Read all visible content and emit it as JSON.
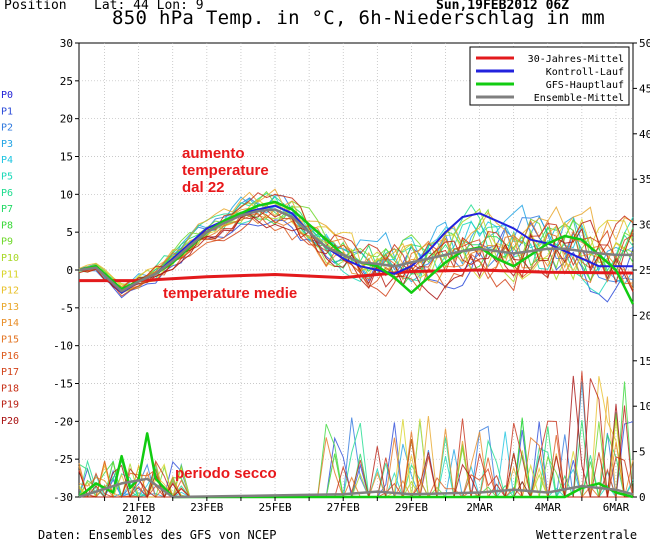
{
  "header": {
    "position_label": "Position",
    "lat_lon": "Lat: 44 Lon: 9",
    "run_time": "Sun,19FEB2012 06Z",
    "title": "850 hPa Temp. in °C, 6h-Niederschlag in mm"
  },
  "footer": {
    "source": "Daten: Ensembles des GFS von NCEP",
    "brand": "Wetterzentrale"
  },
  "colors": {
    "climatology": "#e31a1c",
    "control": "#2222dd",
    "operational": "#11cc11",
    "ensemble_mean": "#7f7f7f"
  },
  "member_labels": [
    "P0",
    "P1",
    "P2",
    "P3",
    "P4",
    "P5",
    "P6",
    "P7",
    "P8",
    "P9",
    "P10",
    "P11",
    "P12",
    "P13",
    "P14",
    "P15",
    "P16",
    "P17",
    "P18",
    "P19",
    "P20"
  ],
  "member_colors": [
    "#1f1fd6",
    "#2a4ad8",
    "#2f78de",
    "#21a3e4",
    "#1cc4e0",
    "#19d8b8",
    "#1ddc8e",
    "#21d964",
    "#3ad83a",
    "#6ed82a",
    "#a8d827",
    "#d8d428",
    "#e8c02a",
    "#e9a72a",
    "#e88d26",
    "#e37422",
    "#dd5b1e",
    "#d2431a",
    "#c72f16",
    "#b81e12",
    "#a81010"
  ],
  "annotations": {
    "rise_line1": "aumento",
    "rise_line2": "temperature",
    "rise_line3": "dal 22",
    "average": "temperature medie",
    "dry": "periodo secco"
  },
  "chart_data": {
    "type": "line",
    "xlabel": "",
    "ylabel": "",
    "x_ticks": [
      "21FEB",
      "23FEB",
      "25FEB",
      "27FEB",
      "29FEB",
      "2MAR",
      "4MAR",
      "6MAR"
    ],
    "x_subtick": "2012",
    "xlim": [
      "2012-02-19T06",
      "2012-03-06T12"
    ],
    "y_left": {
      "unit": "°C",
      "ylim": [
        -30,
        30
      ],
      "ticks": [
        -30,
        -25,
        -20,
        -15,
        -10,
        -5,
        0,
        5,
        10,
        15,
        20,
        25,
        30
      ]
    },
    "y_right": {
      "unit": "mm",
      "ylim": [
        0,
        50
      ],
      "ticks": [
        0,
        5,
        10,
        15,
        20,
        25,
        30,
        35,
        40,
        45,
        50
      ]
    },
    "grid": true,
    "legend_position": "top-right",
    "legend": [
      "30-Jahres-Mittel",
      "Kontroll-Lauf",
      "GFS-Hauptlauf",
      "Ensemble-Mittel"
    ],
    "temperature_series": [
      {
        "name": "30-Jahres-Mittel",
        "style": "climatology",
        "x": [
          "2012-02-19T06",
          "2012-02-21T00",
          "2012-02-23T00",
          "2012-02-25T00",
          "2012-02-27T00",
          "2012-02-29T00",
          "2012-03-02T00",
          "2012-03-04T00",
          "2012-03-06T12"
        ],
        "y": [
          -1.4,
          -1.4,
          -0.9,
          -0.6,
          -1.0,
          -0.2,
          0.0,
          -0.3,
          -0.4
        ]
      },
      {
        "name": "Kontroll-Lauf",
        "style": "control",
        "x": [
          "2012-02-19T06",
          "2012-02-19T18",
          "2012-02-20T12",
          "2012-02-21T00",
          "2012-02-21T12",
          "2012-02-22T00",
          "2012-02-22T12",
          "2012-02-23T00",
          "2012-02-23T12",
          "2012-02-24T00",
          "2012-02-24T12",
          "2012-02-25T00",
          "2012-02-25T12",
          "2012-02-26T00",
          "2012-02-26T12",
          "2012-02-27T00",
          "2012-02-27T12",
          "2012-02-28T00",
          "2012-02-28T12",
          "2012-02-29T00",
          "2012-02-29T12",
          "2012-03-01T00",
          "2012-03-01T12",
          "2012-03-02T00",
          "2012-03-02T12",
          "2012-03-03T00",
          "2012-03-03T12",
          "2012-03-04T00",
          "2012-03-04T12",
          "2012-03-05T00",
          "2012-03-05T12",
          "2012-03-06T00",
          "2012-03-06T12"
        ],
        "y": [
          0,
          0.5,
          -3.0,
          -1.5,
          -0.5,
          1.5,
          3.5,
          5.5,
          6.5,
          7.5,
          8.0,
          8.5,
          7.5,
          5.0,
          3.0,
          1.5,
          0.5,
          0,
          -0.5,
          0.5,
          2.5,
          5.0,
          7.0,
          7.5,
          6.5,
          5.5,
          4.0,
          3.5,
          2.5,
          1.5,
          0.5,
          0.5,
          0.5
        ]
      },
      {
        "name": "GFS-Hauptlauf",
        "style": "operational",
        "x": [
          "2012-02-19T06",
          "2012-02-19T18",
          "2012-02-20T12",
          "2012-02-21T00",
          "2012-02-21T12",
          "2012-02-22T00",
          "2012-02-22T12",
          "2012-02-23T00",
          "2012-02-23T12",
          "2012-02-24T00",
          "2012-02-24T12",
          "2012-02-25T00",
          "2012-02-25T12",
          "2012-02-26T00",
          "2012-02-26T12",
          "2012-02-27T00",
          "2012-02-27T12",
          "2012-02-28T00",
          "2012-02-28T12",
          "2012-02-29T00",
          "2012-02-29T12",
          "2012-03-01T00",
          "2012-03-01T12",
          "2012-03-02T00",
          "2012-03-02T12",
          "2012-03-03T00",
          "2012-03-03T12",
          "2012-03-04T00",
          "2012-03-04T12",
          "2012-03-05T00",
          "2012-03-05T12",
          "2012-03-06T00",
          "2012-03-06T12"
        ],
        "y": [
          0,
          0.5,
          -2.5,
          -1.5,
          -0.5,
          1.0,
          3.0,
          5.0,
          6.5,
          7.5,
          8.5,
          9.0,
          8.0,
          6.0,
          4.0,
          2.0,
          1.0,
          0.5,
          -1.0,
          -3.0,
          -1.0,
          1.0,
          2.5,
          3.0,
          1.5,
          0.5,
          2.0,
          3.5,
          4.5,
          4.0,
          2.0,
          0,
          -4.5
        ]
      },
      {
        "name": "Ensemble-Mittel",
        "style": "ensemble_mean",
        "x": [
          "2012-02-19T06",
          "2012-02-19T18",
          "2012-02-20T12",
          "2012-02-21T00",
          "2012-02-21T12",
          "2012-02-22T00",
          "2012-02-22T12",
          "2012-02-23T00",
          "2012-02-23T12",
          "2012-02-24T00",
          "2012-02-24T12",
          "2012-02-25T00",
          "2012-02-25T12",
          "2012-02-26T00",
          "2012-02-26T12",
          "2012-02-27T00",
          "2012-02-27T12",
          "2012-02-28T00",
          "2012-02-28T12",
          "2012-02-29T00",
          "2012-02-29T12",
          "2012-03-01T00",
          "2012-03-01T12",
          "2012-03-02T00",
          "2012-03-02T12",
          "2012-03-03T00",
          "2012-03-03T12",
          "2012-03-04T00",
          "2012-03-04T12",
          "2012-03-05T00",
          "2012-03-05T12",
          "2012-03-06T00",
          "2012-03-06T12"
        ],
        "y": [
          0,
          0.3,
          -2.8,
          -1.5,
          -0.5,
          1.2,
          3.2,
          5.0,
          6.2,
          7.2,
          7.8,
          8.0,
          7.0,
          5.0,
          3.0,
          2.0,
          1.0,
          0.8,
          0.5,
          1.0,
          1.5,
          2.0,
          2.5,
          2.8,
          2.5,
          2.2,
          2.5,
          2.8,
          2.8,
          2.5,
          2.2,
          2.0,
          2.0
        ]
      }
    ],
    "precipitation_series": [
      {
        "name": "GFS-Hauptlauf",
        "style": "operational",
        "x": [
          "2012-02-19T06",
          "2012-02-19T18",
          "2012-02-20T06",
          "2012-02-20T12",
          "2012-02-20T18",
          "2012-02-21T00",
          "2012-02-21T06",
          "2012-02-21T12",
          "2012-02-22T00",
          "2012-02-23T00",
          "2012-03-04T12",
          "2012-03-05T00",
          "2012-03-05T12",
          "2012-03-06T00",
          "2012-03-06T12"
        ],
        "y": [
          0,
          1.5,
          0.5,
          4.5,
          1.0,
          2.0,
          7.0,
          2.0,
          0,
          0,
          0,
          1.0,
          1.5,
          0.5,
          0
        ]
      },
      {
        "name": "Ensemble-Mittel",
        "style": "ensemble_mean",
        "x": [
          "2012-02-19T06",
          "2012-02-20T12",
          "2012-02-21T06",
          "2012-02-22T00",
          "2012-02-27T00",
          "2012-02-28T00",
          "2012-02-29T00",
          "2012-03-02T00",
          "2012-03-03T00",
          "2012-03-04T00",
          "2012-03-05T00",
          "2012-03-06T00",
          "2012-03-06T12"
        ],
        "y": [
          0,
          1.5,
          2.0,
          0,
          0.3,
          0.6,
          0.3,
          0.5,
          0.8,
          0.5,
          1.2,
          0.8,
          0.3
        ]
      }
    ]
  }
}
